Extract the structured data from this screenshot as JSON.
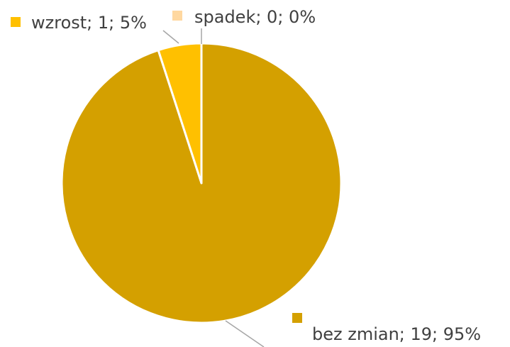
{
  "chart_data": {
    "type": "pie",
    "categories": [
      "bez zmian",
      "wzrost",
      "spadek"
    ],
    "values": [
      19,
      1,
      0
    ],
    "value_labels": [
      "bez zmian; 19; 95%",
      "wzrost; 1; 5%",
      "spadek; 0; 0%"
    ],
    "colors": [
      "#d4a000",
      "#ffc000",
      "#ffd8a0"
    ]
  }
}
